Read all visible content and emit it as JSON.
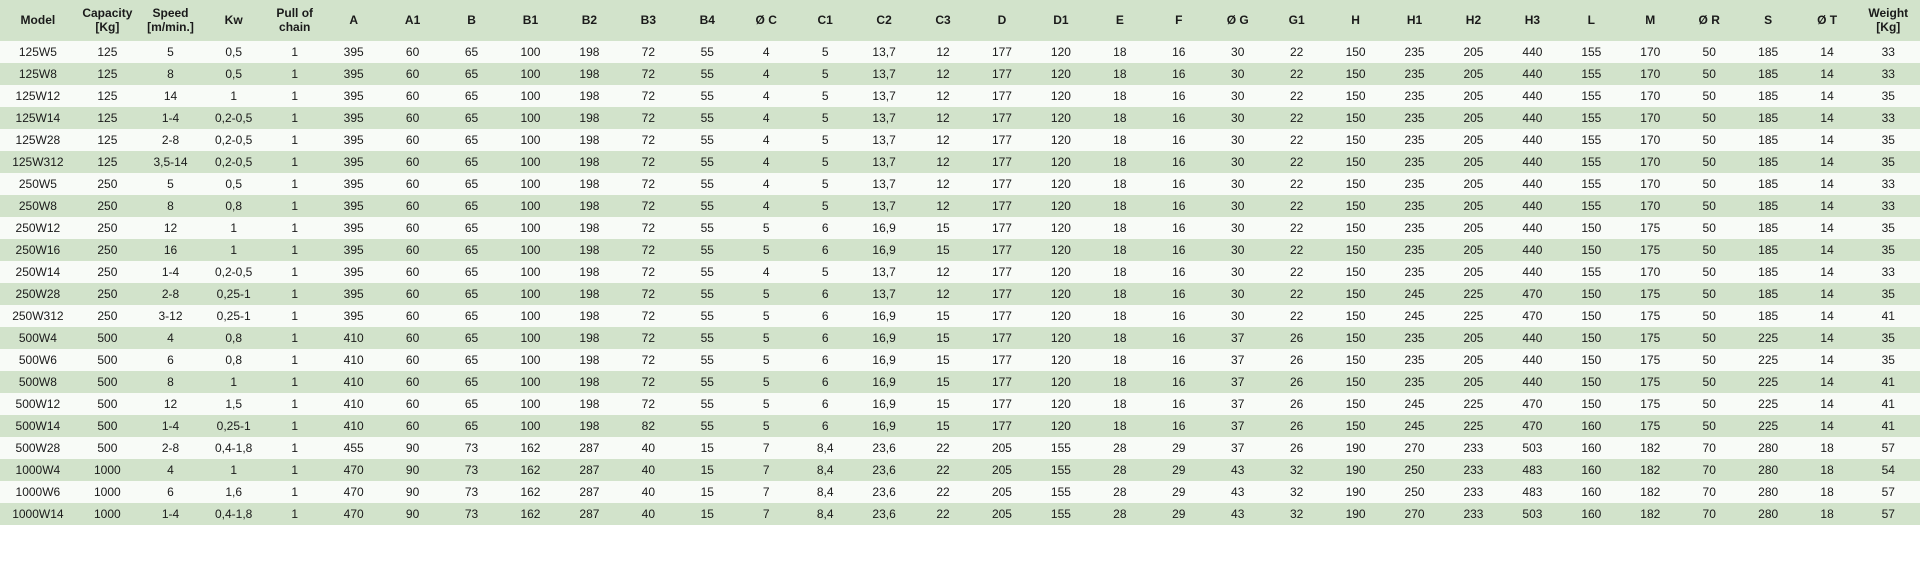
{
  "table": {
    "columns": [
      {
        "key": "model",
        "label": "Model",
        "class": "col-model"
      },
      {
        "key": "capacity",
        "label": "Capacity [Kg]",
        "class": "col-med"
      },
      {
        "key": "speed",
        "label": "Speed [m/min.]",
        "class": "col-med"
      },
      {
        "key": "kw",
        "label": "Kw",
        "class": "col-med"
      },
      {
        "key": "pull",
        "label": "Pull of chain",
        "class": "col-narrow"
      },
      {
        "key": "A",
        "label": "A",
        "class": "col-narrow"
      },
      {
        "key": "A1",
        "label": "A1",
        "class": "col-narrow"
      },
      {
        "key": "B",
        "label": "B",
        "class": "col-narrow"
      },
      {
        "key": "B1",
        "label": "B1",
        "class": "col-narrow"
      },
      {
        "key": "B2",
        "label": "B2",
        "class": "col-narrow"
      },
      {
        "key": "B3",
        "label": "B3",
        "class": "col-narrow"
      },
      {
        "key": "B4",
        "label": "B4",
        "class": "col-narrow"
      },
      {
        "key": "OC",
        "label": "Ø C",
        "class": "col-narrow"
      },
      {
        "key": "C1",
        "label": "C1",
        "class": "col-narrow"
      },
      {
        "key": "C2",
        "label": "C2",
        "class": "col-narrow"
      },
      {
        "key": "C3",
        "label": "C3",
        "class": "col-narrow"
      },
      {
        "key": "D",
        "label": "D",
        "class": "col-narrow"
      },
      {
        "key": "D1",
        "label": "D1",
        "class": "col-narrow"
      },
      {
        "key": "E",
        "label": "E",
        "class": "col-narrow"
      },
      {
        "key": "F",
        "label": "F",
        "class": "col-narrow"
      },
      {
        "key": "OG",
        "label": "Ø G",
        "class": "col-narrow"
      },
      {
        "key": "G1",
        "label": "G1",
        "class": "col-narrow"
      },
      {
        "key": "H",
        "label": "H",
        "class": "col-narrow"
      },
      {
        "key": "H1",
        "label": "H1",
        "class": "col-narrow"
      },
      {
        "key": "H2",
        "label": "H2",
        "class": "col-narrow"
      },
      {
        "key": "H3",
        "label": "H3",
        "class": "col-narrow"
      },
      {
        "key": "L",
        "label": "L",
        "class": "col-narrow"
      },
      {
        "key": "M",
        "label": "M",
        "class": "col-narrow"
      },
      {
        "key": "OR",
        "label": "Ø R",
        "class": "col-narrow"
      },
      {
        "key": "S",
        "label": "S",
        "class": "col-narrow"
      },
      {
        "key": "OT",
        "label": "Ø T",
        "class": "col-narrow"
      },
      {
        "key": "weight",
        "label": "Weight [Kg]",
        "class": "col-med"
      }
    ],
    "rows": [
      [
        "125W5",
        "125",
        "5",
        "0,5",
        "1",
        "395",
        "60",
        "65",
        "100",
        "198",
        "72",
        "55",
        "4",
        "5",
        "13,7",
        "12",
        "177",
        "120",
        "18",
        "16",
        "30",
        "22",
        "150",
        "235",
        "205",
        "440",
        "155",
        "170",
        "50",
        "185",
        "14",
        "33"
      ],
      [
        "125W8",
        "125",
        "8",
        "0,5",
        "1",
        "395",
        "60",
        "65",
        "100",
        "198",
        "72",
        "55",
        "4",
        "5",
        "13,7",
        "12",
        "177",
        "120",
        "18",
        "16",
        "30",
        "22",
        "150",
        "235",
        "205",
        "440",
        "155",
        "170",
        "50",
        "185",
        "14",
        "33"
      ],
      [
        "125W12",
        "125",
        "14",
        "1",
        "1",
        "395",
        "60",
        "65",
        "100",
        "198",
        "72",
        "55",
        "4",
        "5",
        "13,7",
        "12",
        "177",
        "120",
        "18",
        "16",
        "30",
        "22",
        "150",
        "235",
        "205",
        "440",
        "155",
        "170",
        "50",
        "185",
        "14",
        "35"
      ],
      [
        "125W14",
        "125",
        "1-4",
        "0,2-0,5",
        "1",
        "395",
        "60",
        "65",
        "100",
        "198",
        "72",
        "55",
        "4",
        "5",
        "13,7",
        "12",
        "177",
        "120",
        "18",
        "16",
        "30",
        "22",
        "150",
        "235",
        "205",
        "440",
        "155",
        "170",
        "50",
        "185",
        "14",
        "33"
      ],
      [
        "125W28",
        "125",
        "2-8",
        "0,2-0,5",
        "1",
        "395",
        "60",
        "65",
        "100",
        "198",
        "72",
        "55",
        "4",
        "5",
        "13,7",
        "12",
        "177",
        "120",
        "18",
        "16",
        "30",
        "22",
        "150",
        "235",
        "205",
        "440",
        "155",
        "170",
        "50",
        "185",
        "14",
        "35"
      ],
      [
        "125W312",
        "125",
        "3,5-14",
        "0,2-0,5",
        "1",
        "395",
        "60",
        "65",
        "100",
        "198",
        "72",
        "55",
        "4",
        "5",
        "13,7",
        "12",
        "177",
        "120",
        "18",
        "16",
        "30",
        "22",
        "150",
        "235",
        "205",
        "440",
        "155",
        "170",
        "50",
        "185",
        "14",
        "35"
      ],
      [
        "250W5",
        "250",
        "5",
        "0,5",
        "1",
        "395",
        "60",
        "65",
        "100",
        "198",
        "72",
        "55",
        "4",
        "5",
        "13,7",
        "12",
        "177",
        "120",
        "18",
        "16",
        "30",
        "22",
        "150",
        "235",
        "205",
        "440",
        "155",
        "170",
        "50",
        "185",
        "14",
        "33"
      ],
      [
        "250W8",
        "250",
        "8",
        "0,8",
        "1",
        "395",
        "60",
        "65",
        "100",
        "198",
        "72",
        "55",
        "4",
        "5",
        "13,7",
        "12",
        "177",
        "120",
        "18",
        "16",
        "30",
        "22",
        "150",
        "235",
        "205",
        "440",
        "155",
        "170",
        "50",
        "185",
        "14",
        "33"
      ],
      [
        "250W12",
        "250",
        "12",
        "1",
        "1",
        "395",
        "60",
        "65",
        "100",
        "198",
        "72",
        "55",
        "5",
        "6",
        "16,9",
        "15",
        "177",
        "120",
        "18",
        "16",
        "30",
        "22",
        "150",
        "235",
        "205",
        "440",
        "150",
        "175",
        "50",
        "185",
        "14",
        "35"
      ],
      [
        "250W16",
        "250",
        "16",
        "1",
        "1",
        "395",
        "60",
        "65",
        "100",
        "198",
        "72",
        "55",
        "5",
        "6",
        "16,9",
        "15",
        "177",
        "120",
        "18",
        "16",
        "30",
        "22",
        "150",
        "235",
        "205",
        "440",
        "150",
        "175",
        "50",
        "185",
        "14",
        "35"
      ],
      [
        "250W14",
        "250",
        "1-4",
        "0,2-0,5",
        "1",
        "395",
        "60",
        "65",
        "100",
        "198",
        "72",
        "55",
        "4",
        "5",
        "13,7",
        "12",
        "177",
        "120",
        "18",
        "16",
        "30",
        "22",
        "150",
        "235",
        "205",
        "440",
        "155",
        "170",
        "50",
        "185",
        "14",
        "33"
      ],
      [
        "250W28",
        "250",
        "2-8",
        "0,25-1",
        "1",
        "395",
        "60",
        "65",
        "100",
        "198",
        "72",
        "55",
        "5",
        "6",
        "13,7",
        "12",
        "177",
        "120",
        "18",
        "16",
        "30",
        "22",
        "150",
        "245",
        "225",
        "470",
        "150",
        "175",
        "50",
        "185",
        "14",
        "35"
      ],
      [
        "250W312",
        "250",
        "3-12",
        "0,25-1",
        "1",
        "395",
        "60",
        "65",
        "100",
        "198",
        "72",
        "55",
        "5",
        "6",
        "16,9",
        "15",
        "177",
        "120",
        "18",
        "16",
        "30",
        "22",
        "150",
        "245",
        "225",
        "470",
        "150",
        "175",
        "50",
        "185",
        "14",
        "41"
      ],
      [
        "500W4",
        "500",
        "4",
        "0,8",
        "1",
        "410",
        "60",
        "65",
        "100",
        "198",
        "72",
        "55",
        "5",
        "6",
        "16,9",
        "15",
        "177",
        "120",
        "18",
        "16",
        "37",
        "26",
        "150",
        "235",
        "205",
        "440",
        "150",
        "175",
        "50",
        "225",
        "14",
        "35"
      ],
      [
        "500W6",
        "500",
        "6",
        "0,8",
        "1",
        "410",
        "60",
        "65",
        "100",
        "198",
        "72",
        "55",
        "5",
        "6",
        "16,9",
        "15",
        "177",
        "120",
        "18",
        "16",
        "37",
        "26",
        "150",
        "235",
        "205",
        "440",
        "150",
        "175",
        "50",
        "225",
        "14",
        "35"
      ],
      [
        "500W8",
        "500",
        "8",
        "1",
        "1",
        "410",
        "60",
        "65",
        "100",
        "198",
        "72",
        "55",
        "5",
        "6",
        "16,9",
        "15",
        "177",
        "120",
        "18",
        "16",
        "37",
        "26",
        "150",
        "235",
        "205",
        "440",
        "150",
        "175",
        "50",
        "225",
        "14",
        "41"
      ],
      [
        "500W12",
        "500",
        "12",
        "1,5",
        "1",
        "410",
        "60",
        "65",
        "100",
        "198",
        "72",
        "55",
        "5",
        "6",
        "16,9",
        "15",
        "177",
        "120",
        "18",
        "16",
        "37",
        "26",
        "150",
        "245",
        "225",
        "470",
        "150",
        "175",
        "50",
        "225",
        "14",
        "41"
      ],
      [
        "500W14",
        "500",
        "1-4",
        "0,25-1",
        "1",
        "410",
        "60",
        "65",
        "100",
        "198",
        "82",
        "55",
        "5",
        "6",
        "16,9",
        "15",
        "177",
        "120",
        "18",
        "16",
        "37",
        "26",
        "150",
        "245",
        "225",
        "470",
        "160",
        "175",
        "50",
        "225",
        "14",
        "41"
      ],
      [
        "500W28",
        "500",
        "2-8",
        "0,4-1,8",
        "1",
        "455",
        "90",
        "73",
        "162",
        "287",
        "40",
        "15",
        "7",
        "8,4",
        "23,6",
        "22",
        "205",
        "155",
        "28",
        "29",
        "37",
        "26",
        "190",
        "270",
        "233",
        "503",
        "160",
        "182",
        "70",
        "280",
        "18",
        "57"
      ],
      [
        "1000W4",
        "1000",
        "4",
        "1",
        "1",
        "470",
        "90",
        "73",
        "162",
        "287",
        "40",
        "15",
        "7",
        "8,4",
        "23,6",
        "22",
        "205",
        "155",
        "28",
        "29",
        "43",
        "32",
        "190",
        "250",
        "233",
        "483",
        "160",
        "182",
        "70",
        "280",
        "18",
        "54"
      ],
      [
        "1000W6",
        "1000",
        "6",
        "1,6",
        "1",
        "470",
        "90",
        "73",
        "162",
        "287",
        "40",
        "15",
        "7",
        "8,4",
        "23,6",
        "22",
        "205",
        "155",
        "28",
        "29",
        "43",
        "32",
        "190",
        "250",
        "233",
        "483",
        "160",
        "182",
        "70",
        "280",
        "18",
        "57"
      ],
      [
        "1000W14",
        "1000",
        "1-4",
        "0,4-1,8",
        "1",
        "470",
        "90",
        "73",
        "162",
        "287",
        "40",
        "15",
        "7",
        "8,4",
        "23,6",
        "22",
        "205",
        "155",
        "28",
        "29",
        "43",
        "32",
        "190",
        "270",
        "233",
        "503",
        "160",
        "182",
        "70",
        "280",
        "18",
        "57"
      ]
    ],
    "header_bg": "#d2e3cb",
    "row_odd_bg": "#f8fbf7",
    "row_even_bg": "#d2e3cb",
    "text_color": "#1a1a1a",
    "header_fontsize": 12,
    "cell_fontsize": 12
  }
}
